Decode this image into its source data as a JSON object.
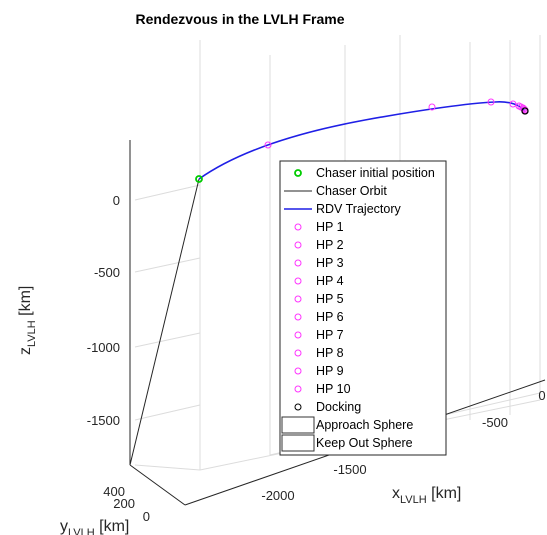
{
  "chart_data": {
    "type": "3d-line",
    "title": "Rendezvous in the LVLH Frame",
    "xlabel": {
      "base": "x",
      "sub": "LVLH",
      "unit": " [km]"
    },
    "ylabel": {
      "base": "y",
      "sub": "LVLH",
      "unit": " [km]"
    },
    "zlabel": {
      "base": "z",
      "sub": "LVLH",
      "unit": " [km]"
    },
    "x_ticks": [
      "-2000",
      "-1500",
      "-500",
      "0"
    ],
    "y_ticks": [
      "400",
      "200",
      "0"
    ],
    "z_ticks": [
      "0",
      "-500",
      "-1000",
      "-1500"
    ],
    "grid": true,
    "legend_position": "inside-right",
    "series": [
      {
        "name": "Chaser initial position",
        "marker": "circle",
        "color": "#00cc00"
      },
      {
        "name": "Chaser Orbit",
        "style": "line",
        "color": "#262626"
      },
      {
        "name": "RDV Trajectory",
        "style": "line",
        "color": "#1f1fe6"
      },
      {
        "name": "HP 1",
        "marker": "circle",
        "color": "#ff33ff"
      },
      {
        "name": "HP 2",
        "marker": "circle",
        "color": "#ff33ff"
      },
      {
        "name": "HP 3",
        "marker": "circle",
        "color": "#ff33ff"
      },
      {
        "name": "HP 4",
        "marker": "circle",
        "color": "#ff33ff"
      },
      {
        "name": "HP 5",
        "marker": "circle",
        "color": "#ff33ff"
      },
      {
        "name": "HP 6",
        "marker": "circle",
        "color": "#ff33ff"
      },
      {
        "name": "HP 7",
        "marker": "circle",
        "color": "#ff33ff"
      },
      {
        "name": "HP 8",
        "marker": "circle",
        "color": "#ff33ff"
      },
      {
        "name": "HP 9",
        "marker": "circle",
        "color": "#ff33ff"
      },
      {
        "name": "HP 10",
        "marker": "circle",
        "color": "#ff33ff"
      },
      {
        "name": "Docking",
        "marker": "circle",
        "color": "#000000"
      },
      {
        "name": "Approach Sphere",
        "marker": "box",
        "color": "#333333"
      },
      {
        "name": "Keep Out Sphere",
        "marker": "box",
        "color": "#333333"
      }
    ]
  }
}
